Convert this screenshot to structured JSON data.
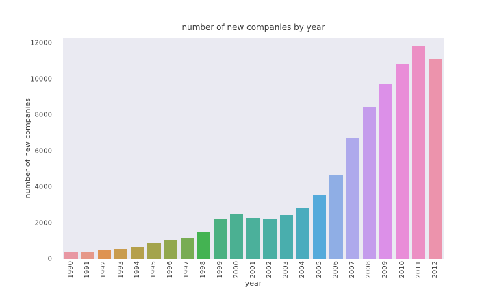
{
  "chart_data": {
    "type": "bar",
    "title": "number of new companies by year",
    "xlabel": "year",
    "ylabel": "number of new companies",
    "categories": [
      "1990",
      "1991",
      "1992",
      "1993",
      "1994",
      "1995",
      "1996",
      "1997",
      "1998",
      "1999",
      "2000",
      "2001",
      "2002",
      "2003",
      "2004",
      "2005",
      "2006",
      "2007",
      "2008",
      "2009",
      "2010",
      "2011",
      "2012"
    ],
    "values": [
      400,
      400,
      480,
      570,
      630,
      860,
      1050,
      1160,
      1490,
      2210,
      2500,
      2290,
      2200,
      2450,
      2830,
      3590,
      4670,
      6740,
      8480,
      9750,
      10850,
      11850,
      11150
    ],
    "bar_colors": [
      "#E897A3",
      "#E69889",
      "#DE9351",
      "#C99C4E",
      "#B5A04B",
      "#A4A44C",
      "#92A84E",
      "#78AC53",
      "#44B352",
      "#4BB181",
      "#4BB092",
      "#4BB09B",
      "#4AAFA4",
      "#49AEAD",
      "#4AACBE",
      "#54AADB",
      "#8FAEE5",
      "#AEA9EC",
      "#C49CEC",
      "#DC90E8",
      "#E98DD8",
      "#EC8FC4",
      "#EC93AC"
    ],
    "yticks": [
      0,
      2000,
      4000,
      6000,
      8000,
      10000,
      12000
    ],
    "ylim": [
      0,
      12316
    ],
    "grid": false,
    "legend": null,
    "plot_background": "#EAEAF2",
    "figure_background": "#FFFFFF",
    "text_color": "#3B3B3B",
    "bar_width_fraction": 0.8,
    "xtick_rotation_degrees": 90
  }
}
